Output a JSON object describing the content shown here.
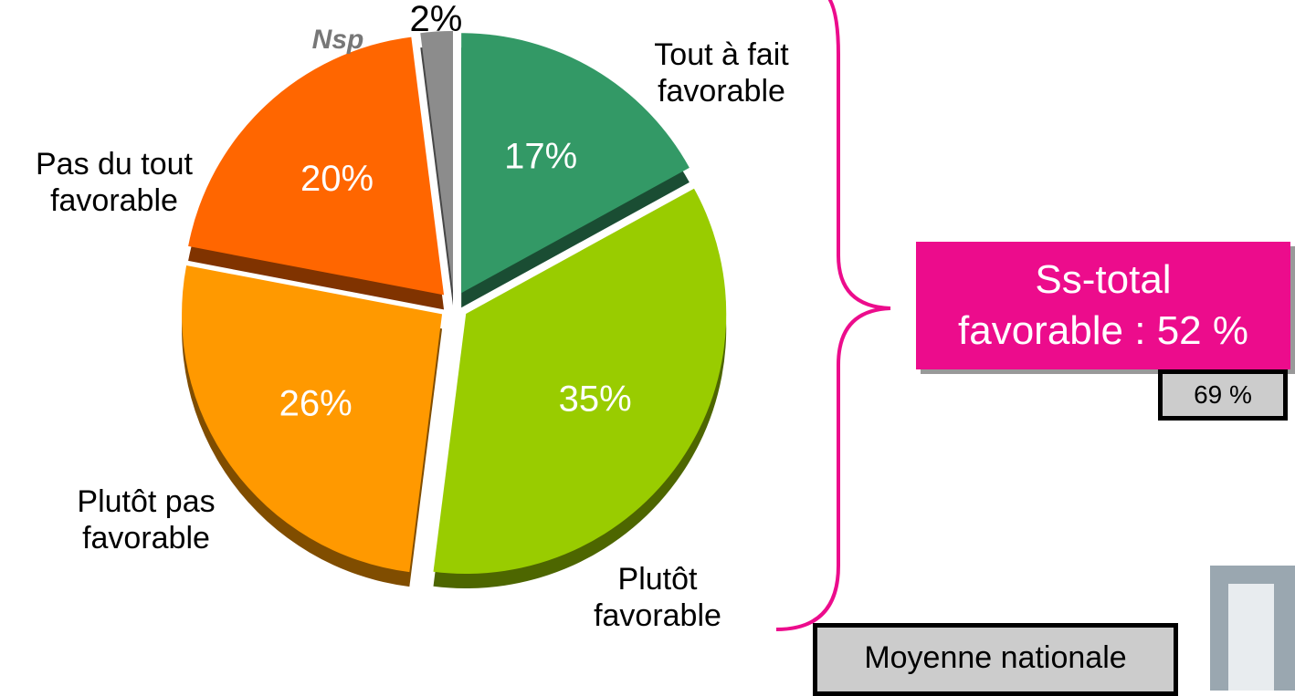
{
  "chart_data": {
    "type": "pie",
    "categories": [
      "Tout à fait\nfavorable",
      "Plutôt\nfavorable",
      "Plutôt pas\nfavorable",
      "Pas du tout\nfavorable",
      "Nsp"
    ],
    "values": [
      17,
      35,
      26,
      20,
      2
    ],
    "value_labels": [
      "17%",
      "35%",
      "26%",
      "20%",
      "2%"
    ],
    "colors": [
      "#339966",
      "#99cc00",
      "#ff9900",
      "#ff6600",
      "#8c8c8c"
    ],
    "annotations": [
      "Ss-total\nfavorable : 52 %",
      "69 %",
      "Moyenne nationale"
    ]
  }
}
